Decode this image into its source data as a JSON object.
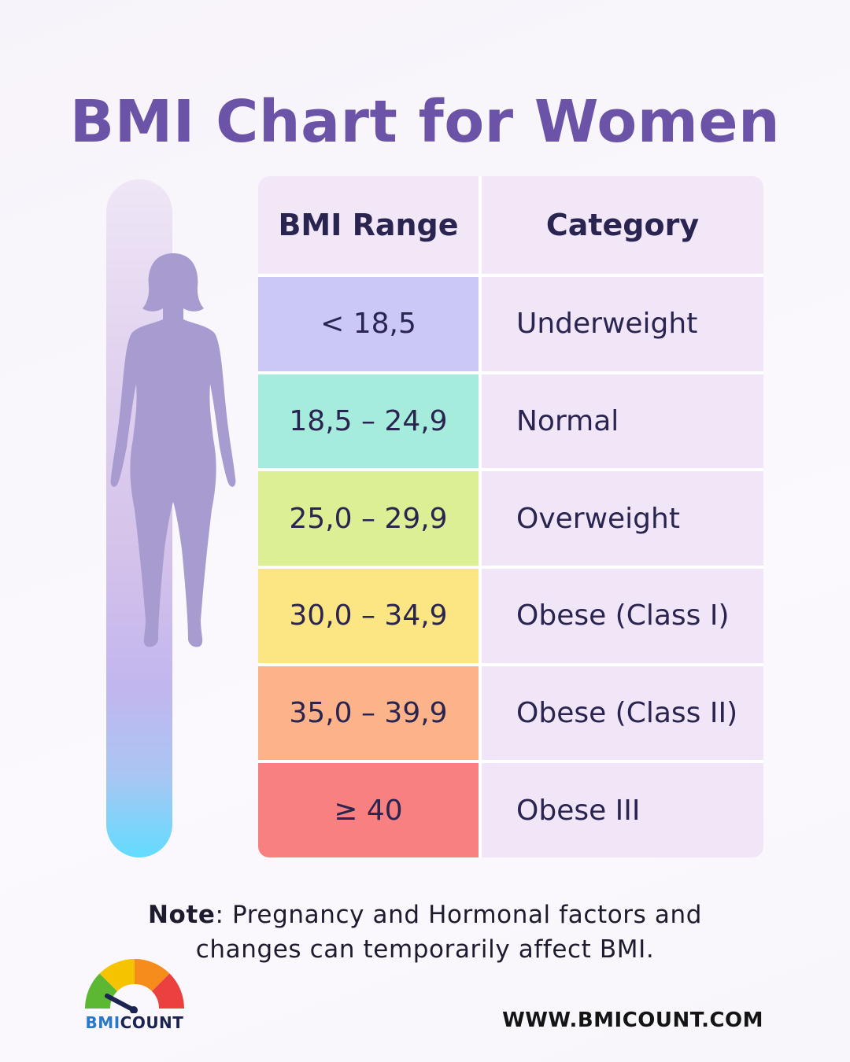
{
  "title": "BMI Chart for Women",
  "chart_data": {
    "type": "table",
    "columns": [
      "BMI Range",
      "Category"
    ],
    "rows": [
      {
        "range": "< 18,5",
        "category": "Underweight",
        "color": "#cbc8f8"
      },
      {
        "range": "18,5 – 24,9",
        "category": "Normal",
        "color": "#a6ecdc"
      },
      {
        "range": "25,0 – 29,9",
        "category": "Overweight",
        "color": "#ddef94"
      },
      {
        "range": "30,0 – 34,9",
        "category": "Obese (Class I)",
        "color": "#fce684"
      },
      {
        "range": "35,0 – 39,9",
        "category": "Obese (Class II)",
        "color": "#fdb389"
      },
      {
        "range": "≥ 40",
        "category": "Obese III",
        "color": "#f98080"
      }
    ]
  },
  "note": {
    "label": "Note",
    "text": ": Pregnancy and Hormonal factors and changes can temporarily affect BMI."
  },
  "logo": {
    "part1": "BMI",
    "part2": "COUNT"
  },
  "website": "WWW.BMICOUNT.COM",
  "colors": {
    "title": "#6b53a8",
    "silhouette": "#a89bcf",
    "gauge": [
      "#5cb833",
      "#f6c300",
      "#f58c1b",
      "#ea4040"
    ]
  }
}
